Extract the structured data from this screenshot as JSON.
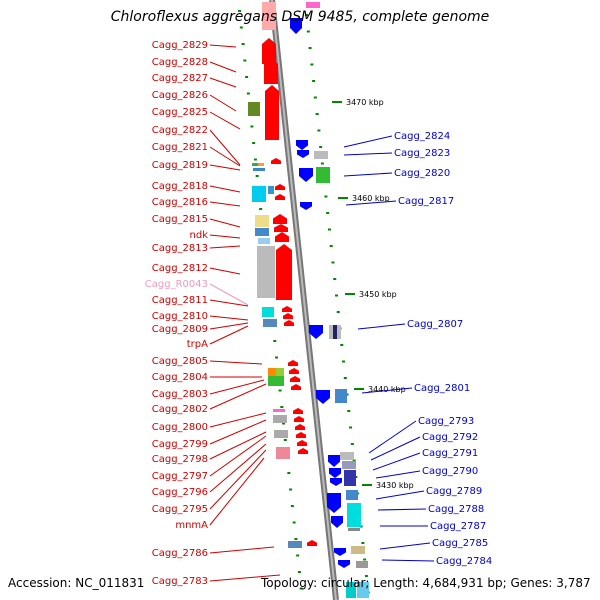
{
  "title": "Chloroflexus aggregans DSM 9485, complete genome",
  "accession_text": "Accession: NC_011831",
  "summary_text": "Topology: circular; Length: 4,684,931 bp; Genes: 3,787",
  "colors": {
    "forward_strand": "#ff0000",
    "reverse_strand": "#0000ff",
    "backbone": "#999999",
    "tick": "#008800",
    "rna_label": "#ee99bb"
  },
  "kbp_labels": [
    "3470 kbp",
    "3460 kbp",
    "3450 kbp",
    "3440 kbp",
    "3430 kbp"
  ],
  "left_labels": [
    {
      "text": "Cagg_2829",
      "type": "cds"
    },
    {
      "text": "Cagg_2828",
      "type": "cds"
    },
    {
      "text": "Cagg_2827",
      "type": "cds"
    },
    {
      "text": "Cagg_2826",
      "type": "cds"
    },
    {
      "text": "Cagg_2825",
      "type": "cds"
    },
    {
      "text": "Cagg_2822",
      "type": "cds"
    },
    {
      "text": "Cagg_2821",
      "type": "cds"
    },
    {
      "text": "Cagg_2819",
      "type": "cds"
    },
    {
      "text": "Cagg_2818",
      "type": "cds"
    },
    {
      "text": "Cagg_2816",
      "type": "cds"
    },
    {
      "text": "Cagg_2815",
      "type": "cds"
    },
    {
      "text": "ndk",
      "type": "cds"
    },
    {
      "text": "Cagg_2813",
      "type": "cds"
    },
    {
      "text": "Cagg_2812",
      "type": "cds"
    },
    {
      "text": "Cagg_R0043",
      "type": "rna"
    },
    {
      "text": "Cagg_2811",
      "type": "cds"
    },
    {
      "text": "Cagg_2810",
      "type": "cds"
    },
    {
      "text": "Cagg_2809",
      "type": "cds"
    },
    {
      "text": "trpA",
      "type": "cds"
    },
    {
      "text": "Cagg_2805",
      "type": "cds"
    },
    {
      "text": "Cagg_2804",
      "type": "cds"
    },
    {
      "text": "Cagg_2803",
      "type": "cds"
    },
    {
      "text": "Cagg_2802",
      "type": "cds"
    },
    {
      "text": "Cagg_2800",
      "type": "cds"
    },
    {
      "text": "Cagg_2799",
      "type": "cds"
    },
    {
      "text": "Cagg_2798",
      "type": "cds"
    },
    {
      "text": "Cagg_2797",
      "type": "cds"
    },
    {
      "text": "Cagg_2796",
      "type": "cds"
    },
    {
      "text": "Cagg_2795",
      "type": "cds"
    },
    {
      "text": "mnmA",
      "type": "cds"
    },
    {
      "text": "Cagg_2786",
      "type": "cds"
    },
    {
      "text": "Cagg_2783",
      "type": "cds"
    }
  ],
  "right_labels": [
    {
      "text": "Cagg_2824"
    },
    {
      "text": "Cagg_2823"
    },
    {
      "text": "Cagg_2820"
    },
    {
      "text": "Cagg_2817"
    },
    {
      "text": "Cagg_2807"
    },
    {
      "text": "Cagg_2801"
    },
    {
      "text": "Cagg_2793"
    },
    {
      "text": "Cagg_2792"
    },
    {
      "text": "Cagg_2791"
    },
    {
      "text": "Cagg_2790"
    },
    {
      "text": "Cagg_2789"
    },
    {
      "text": "Cagg_2788"
    },
    {
      "text": "Cagg_2787"
    },
    {
      "text": "Cagg_2785"
    },
    {
      "text": "Cagg_2784"
    }
  ]
}
